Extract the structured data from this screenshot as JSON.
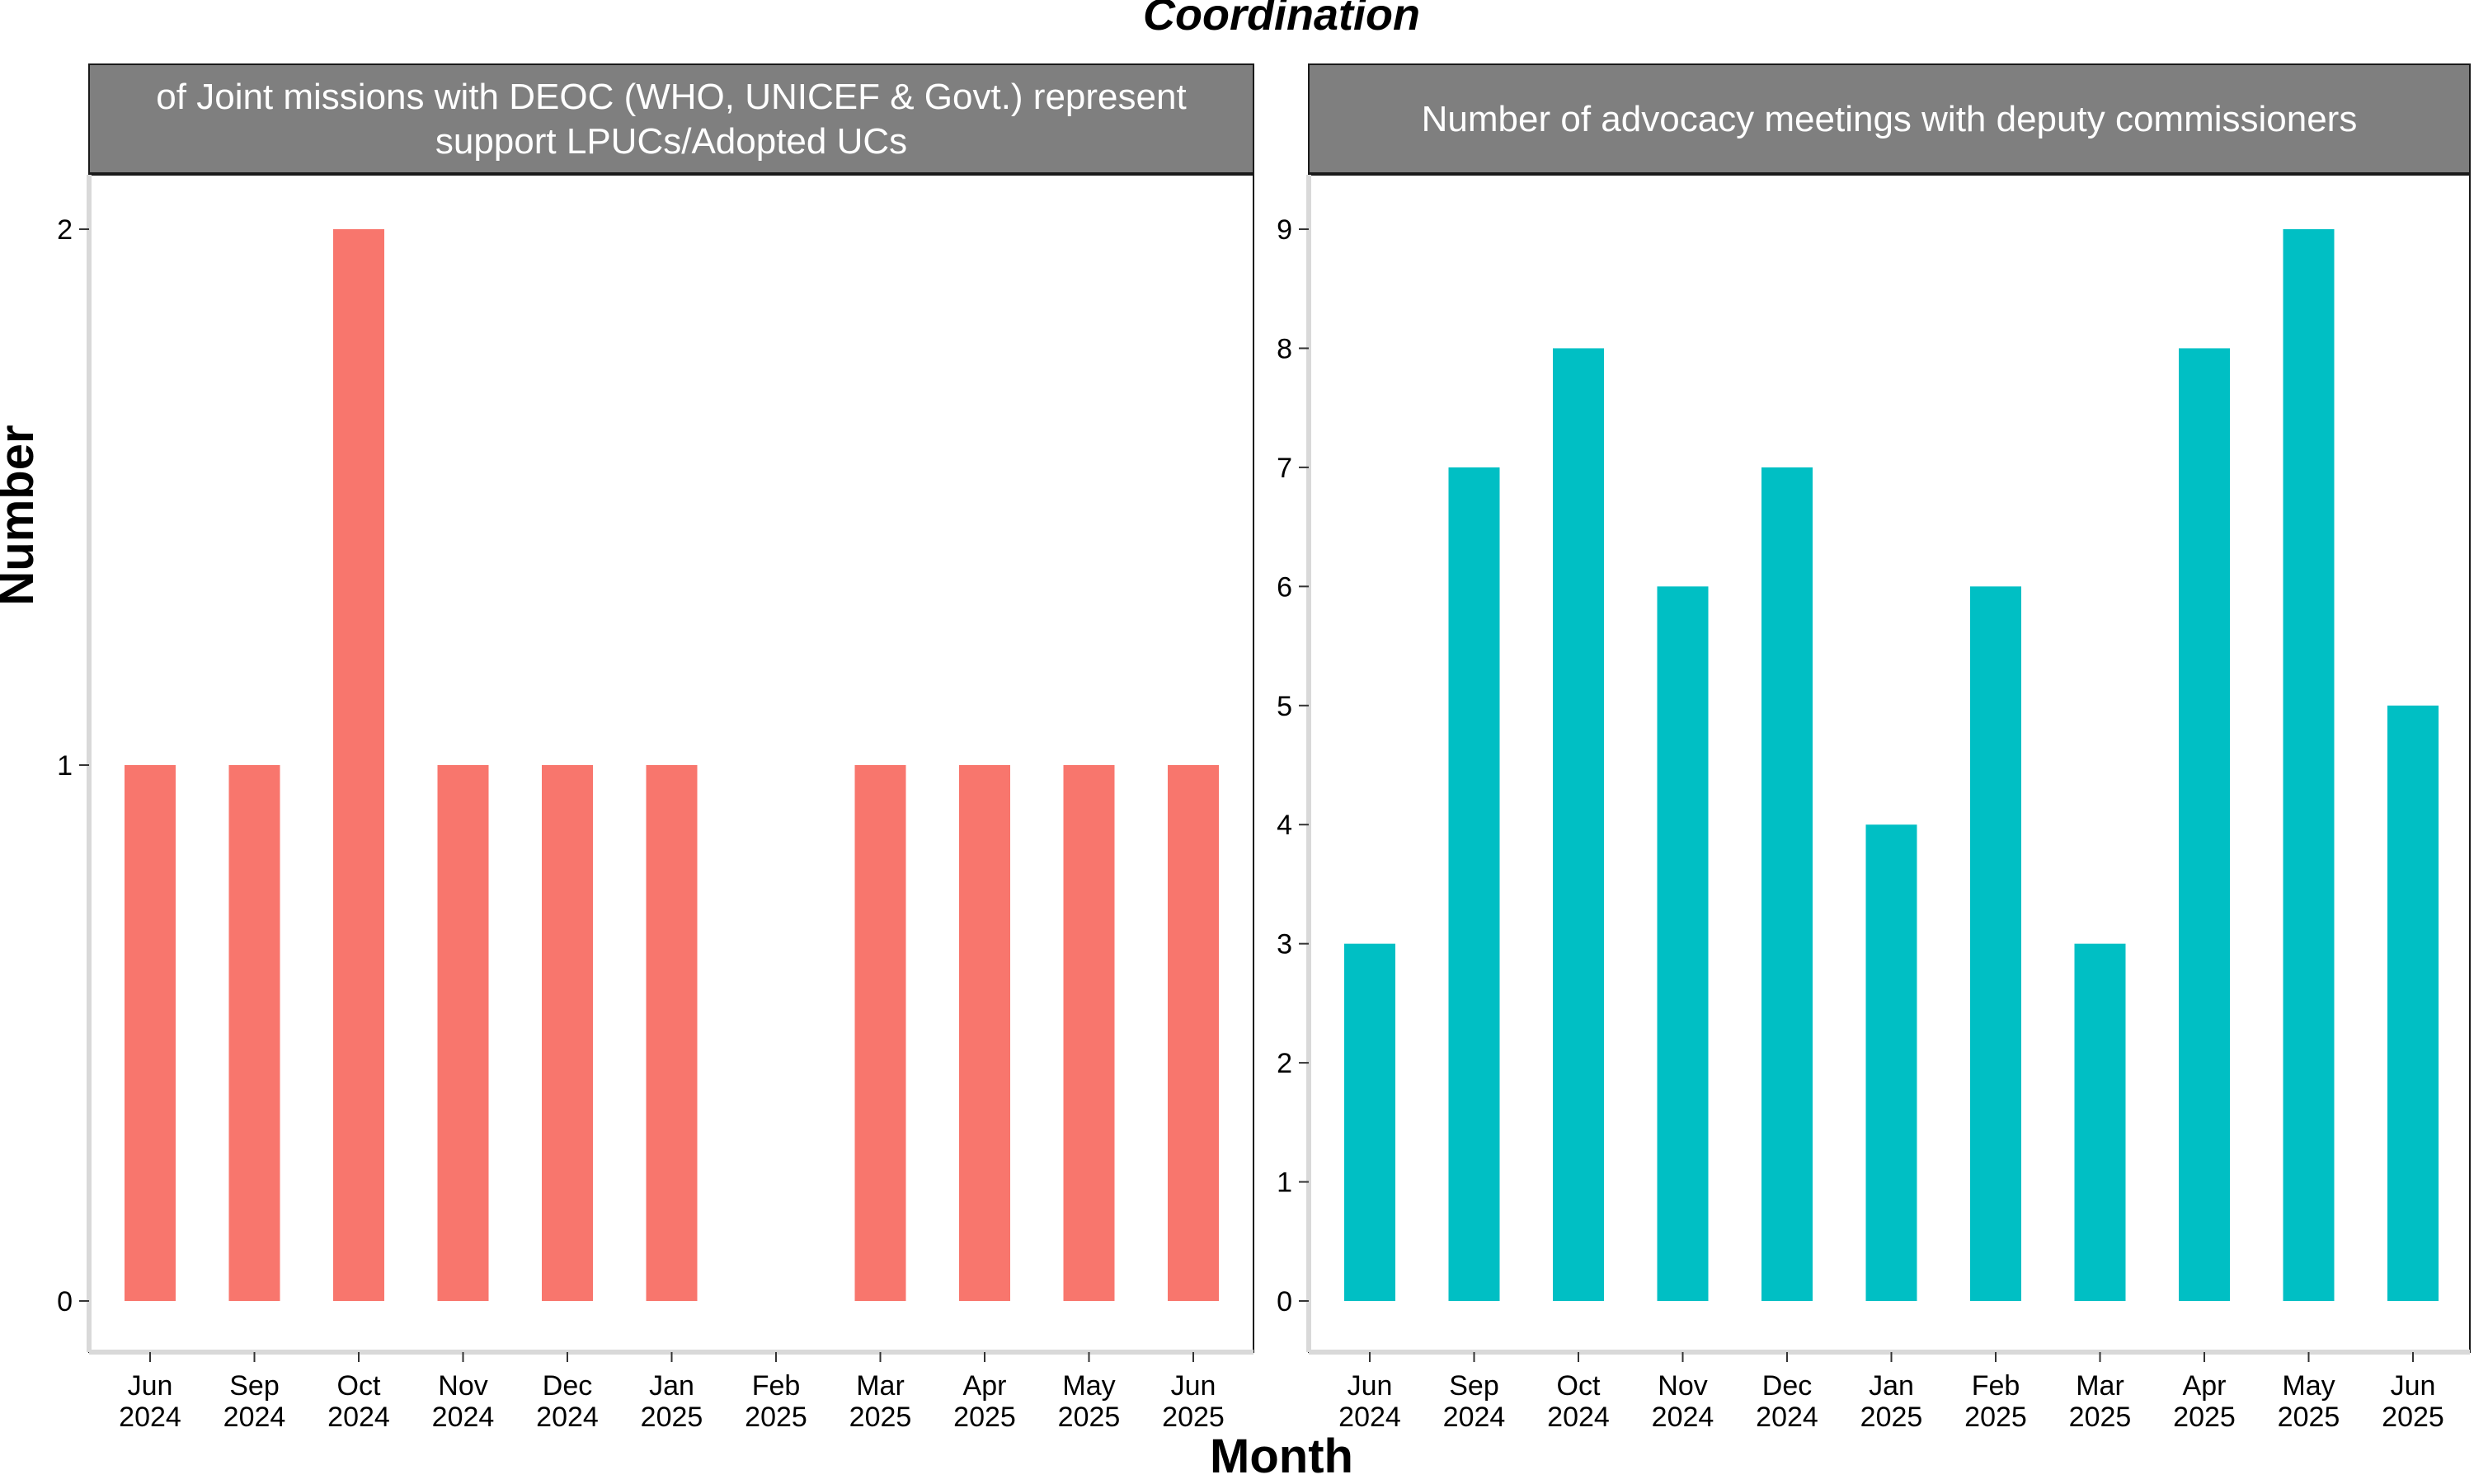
{
  "title": "Coordination",
  "xlabel": "Month",
  "ylabel": "Number",
  "colors": {
    "left": "#F8766D",
    "right": "#00BFC4",
    "strip_bg": "#7F7F7F",
    "axis": "#D9D9D9"
  },
  "chart_data": [
    {
      "type": "bar",
      "panel_title": "of Joint missions with DEOC (WHO, UNICEF & Govt.) represent\nsupport LPUCs/Adopted UCs",
      "categories": [
        "Jun\n2024",
        "Sep\n2024",
        "Oct\n2024",
        "Nov\n2024",
        "Dec\n2024",
        "Jan\n2025",
        "Feb\n2025",
        "Mar\n2025",
        "Apr\n2025",
        "May\n2025",
        "Jun\n2025"
      ],
      "values": [
        1,
        1,
        2,
        1,
        1,
        1,
        0,
        1,
        1,
        1,
        1
      ],
      "ylim": [
        0,
        2
      ],
      "yticks": [
        0,
        1,
        2
      ],
      "color": "#F8766D"
    },
    {
      "type": "bar",
      "panel_title": "Number of advocacy meetings with deputy commissioners",
      "categories": [
        "Jun\n2024",
        "Sep\n2024",
        "Oct\n2024",
        "Nov\n2024",
        "Dec\n2024",
        "Jan\n2025",
        "Feb\n2025",
        "Mar\n2025",
        "Apr\n2025",
        "May\n2025",
        "Jun\n2025"
      ],
      "values": [
        3,
        7,
        8,
        6,
        7,
        4,
        6,
        3,
        8,
        9,
        5
      ],
      "ylim": [
        0,
        9
      ],
      "yticks": [
        0,
        1,
        2,
        3,
        4,
        5,
        6,
        7,
        8,
        9
      ],
      "color": "#00BFC4"
    }
  ]
}
